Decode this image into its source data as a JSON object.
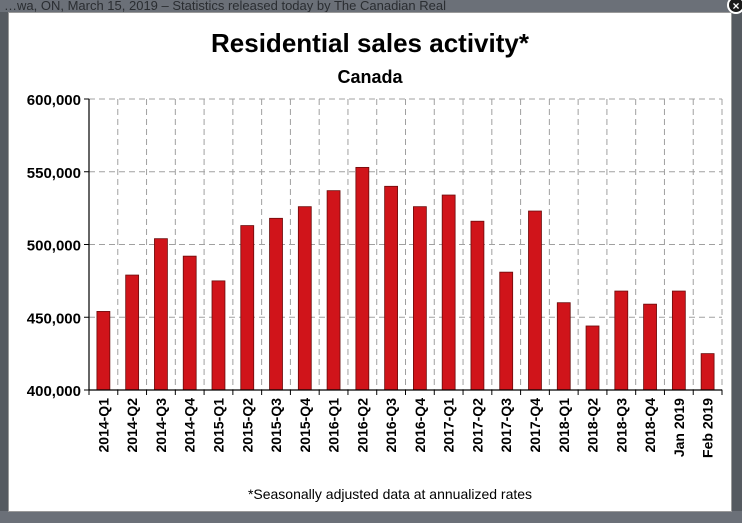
{
  "window": {
    "backdrop_text": "…wa, ON, March 15, 2019 – Statistics released today by The Canadian Real",
    "close_icon": "close-icon",
    "close_glyph": "×"
  },
  "colors": {
    "bar": "#d0141a",
    "bar_stroke": "#6a0a0a",
    "grid": "#a0a0a0",
    "axis": "#000000"
  },
  "chart_data": {
    "type": "bar",
    "title": "Residential sales activity*",
    "subtitle": "Canada",
    "footnote": "*Seasonally adjusted data at annualized rates",
    "xlabel": "",
    "ylabel": "",
    "ylim": [
      400000,
      600000
    ],
    "yticks": [
      400000,
      450000,
      500000,
      550000,
      600000
    ],
    "ytick_labels": [
      "400,000",
      "450,000",
      "500,000",
      "550,000",
      "600,000"
    ],
    "grid": true,
    "legend": "none",
    "categories": [
      "2014-Q1",
      "2014-Q2",
      "2014-Q3",
      "2014-Q4",
      "2015-Q1",
      "2015-Q2",
      "2015-Q3",
      "2015-Q4",
      "2016-Q1",
      "2016-Q2",
      "2016-Q3",
      "2016-Q4",
      "2017-Q1",
      "2017-Q2",
      "2017-Q3",
      "2017-Q4",
      "2018-Q1",
      "2018-Q2",
      "2018-Q3",
      "2018-Q4",
      "Jan 2019",
      "Feb 2019"
    ],
    "values": [
      454000,
      479000,
      504000,
      492000,
      475000,
      513000,
      518000,
      526000,
      537000,
      553000,
      540000,
      526000,
      534000,
      516000,
      481000,
      523000,
      460000,
      444000,
      468000,
      459000,
      468000,
      425000
    ]
  }
}
